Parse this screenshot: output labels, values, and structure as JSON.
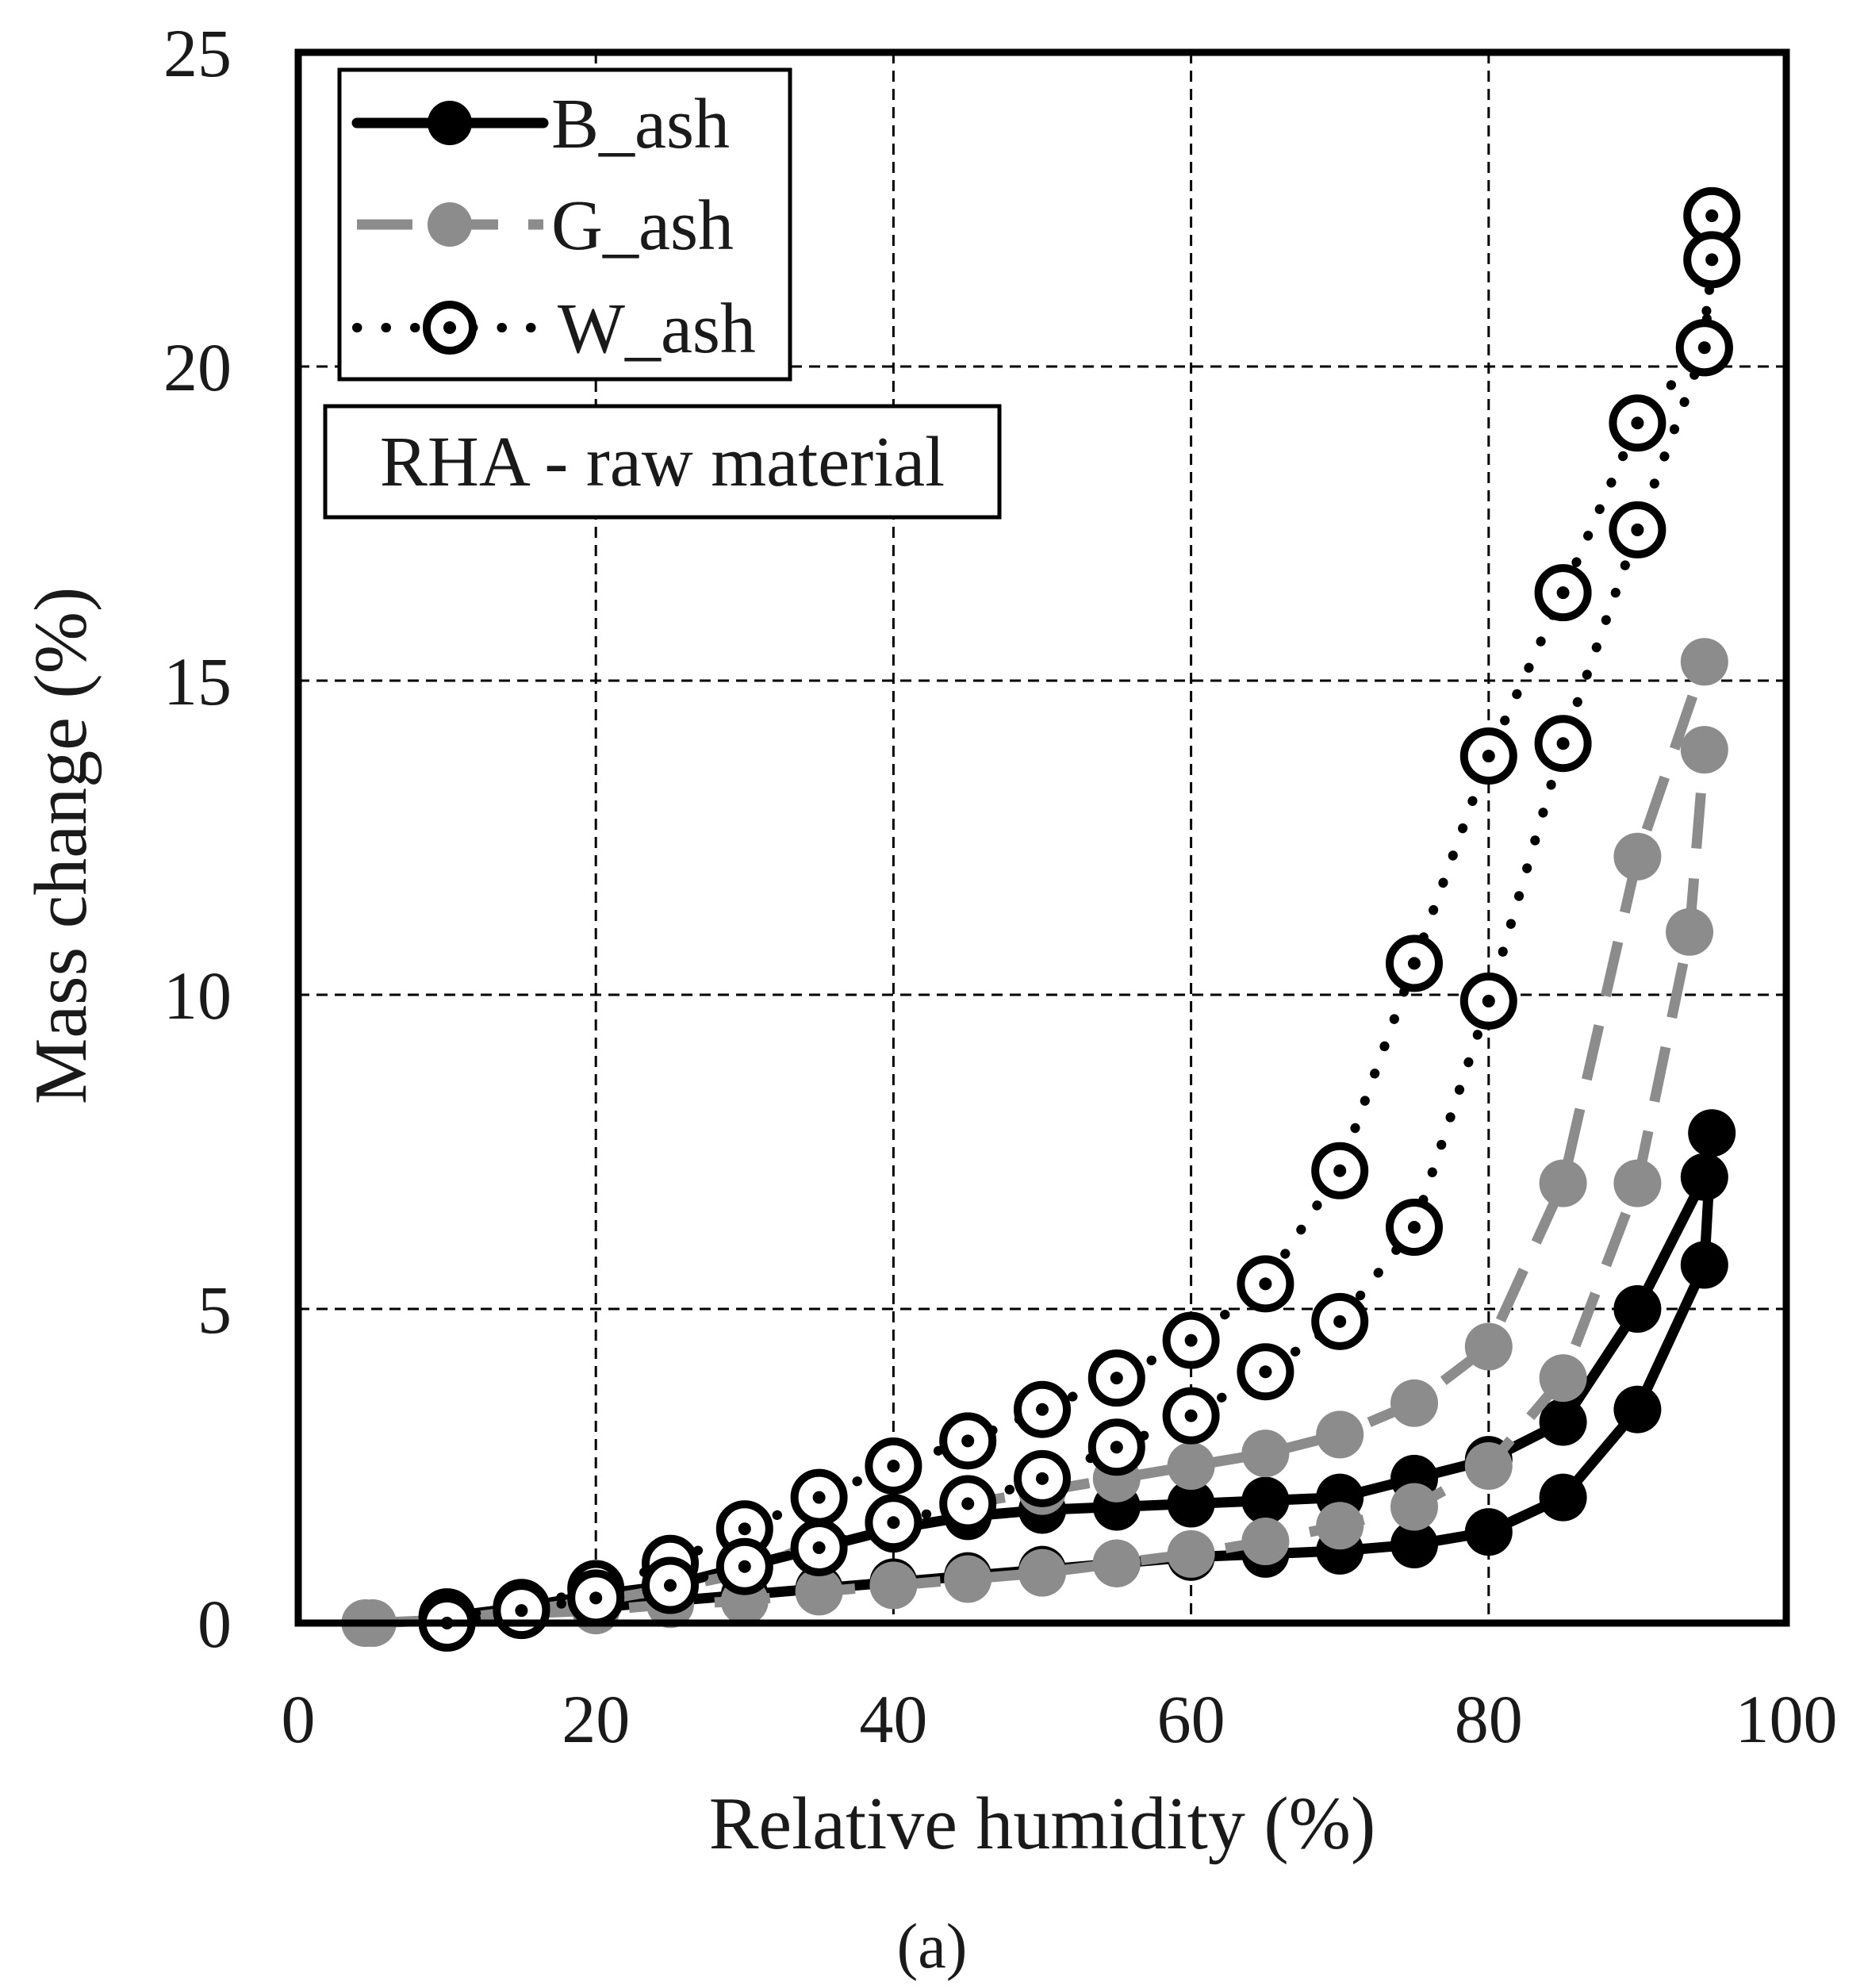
{
  "chart_data": {
    "type": "line",
    "title": "",
    "xlabel": "Relative humidity  (%)",
    "ylabel": "Mass change  (%)",
    "xlim": [
      0,
      100
    ],
    "ylim": [
      0,
      25
    ],
    "xticks": [
      0,
      20,
      40,
      60,
      80,
      100
    ],
    "yticks": [
      0,
      5,
      10,
      15,
      20,
      25
    ],
    "xtick_labels": [
      "0",
      "20",
      "40",
      "60",
      "80",
      "100"
    ],
    "ytick_labels": [
      "0",
      "5",
      "10",
      "15",
      "20",
      "25"
    ],
    "grid": true,
    "legend_position": "top-left",
    "annotation": "RHA - raw material",
    "caption": "(a)",
    "series": [
      {
        "name": "B_ash",
        "color": "#000000",
        "marker": "filled-circle",
        "line": "solid",
        "lines": [
          {
            "x": [
              10,
              15,
              20,
              25,
              30,
              35,
              40,
              45,
              50,
              55,
              60,
              65,
              70,
              75,
              80,
              85,
              90,
              94.5
            ],
            "y": [
              0.1,
              0.25,
              0.45,
              0.6,
              0.9,
              1.2,
              1.5,
              1.7,
              1.8,
              1.85,
              1.9,
              1.95,
              2.0,
              2.3,
              2.6,
              3.2,
              5.0,
              7.1
            ]
          },
          {
            "x": [
              10,
              15,
              20,
              25,
              30,
              35,
              40,
              45,
              50,
              55,
              60,
              65,
              70,
              75,
              80,
              85,
              90,
              94.5,
              95
            ],
            "y": [
              0.0,
              0.15,
              0.25,
              0.35,
              0.45,
              0.55,
              0.65,
              0.75,
              0.85,
              0.95,
              1.05,
              1.1,
              1.15,
              1.25,
              1.45,
              2.0,
              3.4,
              5.7,
              7.8
            ]
          }
        ]
      },
      {
        "name": "G_ash",
        "color": "#8c8c8c",
        "marker": "filled-circle",
        "line": "dashed",
        "lines": [
          {
            "x": [
              4.5,
              10,
              15,
              20,
              25,
              30,
              35,
              40,
              45,
              50,
              55,
              60,
              65,
              70,
              75,
              80,
              85,
              90,
              94.5
            ],
            "y": [
              0.0,
              0.05,
              0.2,
              0.35,
              0.55,
              0.8,
              1.3,
              1.6,
              1.9,
              2.1,
              2.3,
              2.5,
              2.7,
              3.0,
              3.5,
              4.4,
              7.0,
              12.2,
              15.3
            ]
          },
          {
            "x": [
              5,
              10,
              15,
              20,
              25,
              30,
              35,
              40,
              45,
              50,
              55,
              60,
              65,
              70,
              75,
              80,
              85,
              90,
              93.5,
              94.5
            ],
            "y": [
              0.0,
              0.05,
              0.15,
              0.2,
              0.3,
              0.35,
              0.5,
              0.6,
              0.7,
              0.8,
              0.95,
              1.1,
              1.3,
              1.55,
              1.85,
              2.5,
              3.9,
              7.0,
              11.0,
              13.9
            ]
          }
        ]
      },
      {
        "name": "W_ash",
        "color": "#000000",
        "marker": "open-circle",
        "line": "dotted",
        "lines": [
          {
            "x": [
              10,
              15,
              20,
              25,
              30,
              35,
              40,
              45,
              50,
              55,
              60,
              65,
              70,
              75,
              80,
              85,
              90,
              94.5,
              95
            ],
            "y": [
              0.1,
              0.25,
              0.55,
              0.95,
              1.5,
              2.0,
              2.5,
              2.9,
              3.4,
              3.9,
              4.5,
              5.4,
              7.2,
              10.5,
              13.8,
              16.4,
              19.1,
              20.3,
              22.4
            ]
          },
          {
            "x": [
              10,
              15,
              20,
              25,
              30,
              35,
              40,
              45,
              50,
              55,
              60,
              65,
              70,
              75,
              80,
              85,
              90,
              94.5,
              95
            ],
            "y": [
              0.0,
              0.2,
              0.4,
              0.6,
              0.9,
              1.2,
              1.6,
              1.9,
              2.3,
              2.8,
              3.3,
              4.0,
              4.8,
              6.3,
              9.9,
              14.0,
              17.4,
              20.3,
              21.7
            ]
          }
        ]
      }
    ]
  }
}
